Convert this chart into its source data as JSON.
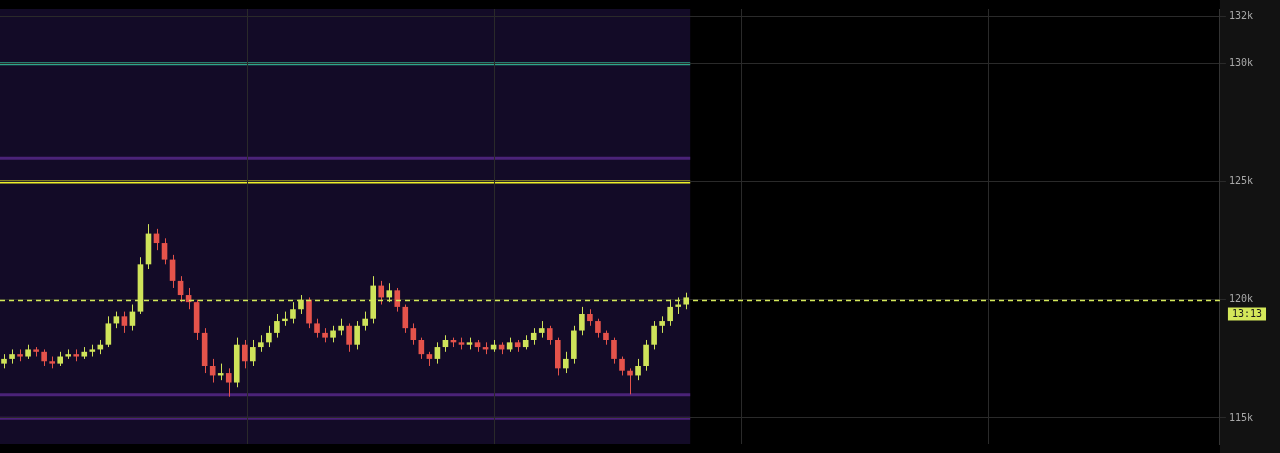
{
  "chart_data": {
    "type": "candlestick",
    "categories": [
      null,
      null,
      null,
      null,
      null,
      null,
      null,
      null,
      null,
      null,
      null,
      null,
      null,
      null,
      null,
      null,
      null,
      null,
      null,
      null,
      null,
      null,
      null,
      null,
      null,
      null,
      null,
      null,
      null,
      null,
      null,
      null,
      null,
      null,
      null,
      null,
      null,
      null,
      null,
      null,
      null,
      null,
      null,
      null,
      null,
      null,
      null,
      null,
      null,
      null,
      null,
      null,
      null,
      null,
      null,
      null,
      null,
      null,
      null,
      null,
      null,
      null,
      null,
      null,
      null,
      null,
      null,
      null,
      null,
      null,
      null,
      null,
      null,
      null,
      null,
      null,
      null,
      null,
      null,
      null,
      null,
      null,
      null,
      null,
      null,
      null,
      null,
      null,
      null,
      null,
      null,
      null,
      null,
      null,
      null,
      null,
      null,
      null,
      null,
      null,
      null,
      null,
      null,
      null,
      null,
      null,
      null,
      null,
      null,
      null,
      null,
      null,
      null,
      null,
      null,
      null,
      null,
      null,
      null,
      null,
      null,
      null,
      null,
      null,
      null,
      null,
      null,
      null,
      null,
      null,
      null,
      null,
      null,
      null,
      null,
      null,
      null,
      null,
      null,
      null,
      null,
      null,
      null,
      null,
      null,
      null,
      null,
      null,
      null,
      null,
      null,
      null
    ],
    "ohlc": [
      [
        117.3,
        117.7,
        117.1,
        117.5
      ],
      [
        117.5,
        117.9,
        117.3,
        117.7
      ],
      [
        117.7,
        117.9,
        117.4,
        117.6
      ],
      [
        117.6,
        118.1,
        117.5,
        117.9
      ],
      [
        117.9,
        118.0,
        117.6,
        117.8
      ],
      [
        117.8,
        117.9,
        117.2,
        117.4
      ],
      [
        117.4,
        117.6,
        117.1,
        117.3
      ],
      [
        117.3,
        117.8,
        117.2,
        117.6
      ],
      [
        117.6,
        117.9,
        117.5,
        117.7
      ],
      [
        117.7,
        117.9,
        117.4,
        117.6
      ],
      [
        117.6,
        118.0,
        117.5,
        117.8
      ],
      [
        117.8,
        118.1,
        117.6,
        117.9
      ],
      [
        117.9,
        118.3,
        117.7,
        118.1
      ],
      [
        118.1,
        119.3,
        118.0,
        119.0
      ],
      [
        119.0,
        119.5,
        118.8,
        119.3
      ],
      [
        119.3,
        119.5,
        118.6,
        118.9
      ],
      [
        118.9,
        119.8,
        118.7,
        119.5
      ],
      [
        119.5,
        121.8,
        119.4,
        121.5
      ],
      [
        121.5,
        123.2,
        121.3,
        122.8
      ],
      [
        122.8,
        123.0,
        122.1,
        122.4
      ],
      [
        122.4,
        122.6,
        121.5,
        121.7
      ],
      [
        121.7,
        121.9,
        120.5,
        120.8
      ],
      [
        120.8,
        121.0,
        119.9,
        120.2
      ],
      [
        120.2,
        120.5,
        119.6,
        119.9
      ],
      [
        119.9,
        120.0,
        118.3,
        118.6
      ],
      [
        118.6,
        118.8,
        116.9,
        117.2
      ],
      [
        117.2,
        117.5,
        116.5,
        116.8
      ],
      [
        116.8,
        117.3,
        116.6,
        116.9
      ],
      [
        116.9,
        117.1,
        115.9,
        116.5
      ],
      [
        116.5,
        118.4,
        116.3,
        118.1
      ],
      [
        118.1,
        118.3,
        117.1,
        117.4
      ],
      [
        117.4,
        118.3,
        117.2,
        118.0
      ],
      [
        118.0,
        118.5,
        117.8,
        118.2
      ],
      [
        118.2,
        118.9,
        118.0,
        118.6
      ],
      [
        118.6,
        119.4,
        118.4,
        119.1
      ],
      [
        119.1,
        119.5,
        118.9,
        119.2
      ],
      [
        119.2,
        119.9,
        119.0,
        119.6
      ],
      [
        119.6,
        120.2,
        119.4,
        120.0
      ],
      [
        120.0,
        120.1,
        118.8,
        119.0
      ],
      [
        119.0,
        119.2,
        118.4,
        118.6
      ],
      [
        118.6,
        118.8,
        118.2,
        118.4
      ],
      [
        118.4,
        118.9,
        118.2,
        118.7
      ],
      [
        118.7,
        119.2,
        118.5,
        118.9
      ],
      [
        118.9,
        119.0,
        117.8,
        118.1
      ],
      [
        118.1,
        119.1,
        117.9,
        118.9
      ],
      [
        118.9,
        119.5,
        118.7,
        119.2
      ],
      [
        119.2,
        121.0,
        119.0,
        120.6
      ],
      [
        120.6,
        120.8,
        119.8,
        120.1
      ],
      [
        120.1,
        120.7,
        119.9,
        120.4
      ],
      [
        120.4,
        120.5,
        119.5,
        119.7
      ],
      [
        119.7,
        119.8,
        118.6,
        118.8
      ],
      [
        118.8,
        119.0,
        118.1,
        118.3
      ],
      [
        118.3,
        118.4,
        117.5,
        117.7
      ],
      [
        117.7,
        117.8,
        117.2,
        117.5
      ],
      [
        117.5,
        118.2,
        117.3,
        118.0
      ],
      [
        118.0,
        118.5,
        117.8,
        118.3
      ],
      [
        118.3,
        118.4,
        118.0,
        118.2
      ],
      [
        118.2,
        118.4,
        117.9,
        118.1
      ],
      [
        118.1,
        118.4,
        117.9,
        118.2
      ],
      [
        118.2,
        118.3,
        117.8,
        118.0
      ],
      [
        118.0,
        118.2,
        117.7,
        117.9
      ],
      [
        117.9,
        118.3,
        117.8,
        118.1
      ],
      [
        118.1,
        118.2,
        117.7,
        117.9
      ],
      [
        117.9,
        118.4,
        117.8,
        118.2
      ],
      [
        118.2,
        118.3,
        117.8,
        118.0
      ],
      [
        118.0,
        118.5,
        117.9,
        118.3
      ],
      [
        118.3,
        118.8,
        118.1,
        118.6
      ],
      [
        118.6,
        119.1,
        118.4,
        118.8
      ],
      [
        118.8,
        118.9,
        118.1,
        118.3
      ],
      [
        118.3,
        118.4,
        116.8,
        117.1
      ],
      [
        117.1,
        117.8,
        116.9,
        117.5
      ],
      [
        117.5,
        118.9,
        117.3,
        118.7
      ],
      [
        118.7,
        119.7,
        118.5,
        119.4
      ],
      [
        119.4,
        119.6,
        118.9,
        119.1
      ],
      [
        119.1,
        119.2,
        118.4,
        118.6
      ],
      [
        118.6,
        118.7,
        118.1,
        118.3
      ],
      [
        118.3,
        118.4,
        117.3,
        117.5
      ],
      [
        117.5,
        117.6,
        116.8,
        117.0
      ],
      [
        117.0,
        117.1,
        116.0,
        116.8
      ],
      [
        116.8,
        117.5,
        116.6,
        117.2
      ],
      [
        117.2,
        118.3,
        117.0,
        118.1
      ],
      [
        118.1,
        119.1,
        117.9,
        118.9
      ],
      [
        118.9,
        119.3,
        118.6,
        119.1
      ],
      [
        119.1,
        120.0,
        118.9,
        119.7
      ],
      [
        119.7,
        120.1,
        119.4,
        119.8
      ],
      [
        119.8,
        120.3,
        119.6,
        120.1
      ],
      null,
      null,
      null,
      null,
      null,
      null,
      null,
      null,
      null,
      null,
      null,
      null,
      null,
      null,
      null,
      null,
      null,
      null,
      null,
      null,
      null,
      null,
      null,
      null,
      null,
      null,
      null,
      null,
      null,
      null,
      null,
      null,
      null,
      null,
      null,
      null,
      null,
      null,
      null,
      null,
      null,
      null,
      null,
      null,
      null,
      null,
      null,
      null,
      null,
      null,
      null,
      null,
      null,
      null,
      null,
      null,
      null,
      null,
      null,
      null,
      null,
      null,
      null,
      null,
      null,
      null
    ],
    "colors": [
      "#cfe35a",
      "#cfe35a",
      "#e5534b",
      "#cfe35a",
      "#e5534b",
      "#e5534b",
      "#e5534b",
      "#cfe35a",
      "#cfe35a",
      "#e5534b",
      "#cfe35a",
      "#cfe35a",
      "#cfe35a",
      "#cfe35a",
      "#cfe35a",
      "#e5534b",
      "#cfe35a",
      "#cfe35a",
      "#cfe35a",
      "#e5534b",
      "#e5534b",
      "#e5534b",
      "#e5534b",
      "#e5534b",
      "#e5534b",
      "#e5534b",
      "#e5534b",
      "#cfe35a",
      "#e5534b",
      "#cfe35a",
      "#e5534b",
      "#cfe35a",
      "#cfe35a",
      "#cfe35a",
      "#cfe35a",
      "#cfe35a",
      "#cfe35a",
      "#cfe35a",
      "#e5534b",
      "#e5534b",
      "#e5534b",
      "#cfe35a",
      "#cfe35a",
      "#e5534b",
      "#cfe35a",
      "#cfe35a",
      "#cfe35a",
      "#e5534b",
      "#cfe35a",
      "#e5534b",
      "#e5534b",
      "#e5534b",
      "#e5534b",
      "#e5534b",
      "#cfe35a",
      "#cfe35a",
      "#e5534b",
      "#e5534b",
      "#cfe35a",
      "#e5534b",
      "#e5534b",
      "#cfe35a",
      "#e5534b",
      "#cfe35a",
      "#e5534b",
      "#cfe35a",
      "#cfe35a",
      "#cfe35a",
      "#e5534b",
      "#e5534b",
      "#cfe35a",
      "#cfe35a",
      "#cfe35a",
      "#e5534b",
      "#e5534b",
      "#e5534b",
      "#e5534b",
      "#e5534b",
      "#e5534b",
      "#cfe35a",
      "#cfe35a",
      "#cfe35a",
      "#cfe35a",
      "#cfe35a",
      "#cfe35a",
      "#cfe35a",
      null,
      null,
      null,
      null,
      null,
      null,
      null,
      null,
      null,
      null,
      null,
      null,
      null,
      null,
      null,
      null,
      null,
      null,
      null,
      null,
      null,
      null,
      null,
      null,
      null,
      null,
      null,
      null,
      null,
      null,
      null,
      null,
      null,
      null,
      null,
      null,
      null,
      null,
      null,
      null,
      null,
      null,
      null,
      null,
      null,
      null,
      null,
      null,
      null,
      null,
      null,
      null,
      null,
      null,
      null,
      null,
      null,
      null,
      null,
      null,
      null,
      null,
      null,
      null,
      null,
      null
    ],
    "annotations": [
      "13:13"
    ],
    "ylim": [
      113.9,
      132.3
    ],
    "yticks": [
      {
        "value": 115,
        "label": "115k"
      },
      {
        "value": 120,
        "label": "120k"
      },
      {
        "value": 125,
        "label": "125k"
      },
      {
        "value": 130,
        "label": "130k"
      },
      {
        "value": 132,
        "label": "132k"
      }
    ],
    "grid": true,
    "ref_lines": [
      {
        "axis": "y",
        "value": 120.0,
        "color": "#d4e85a",
        "line_style": "dashed"
      }
    ],
    "bands": [
      {
        "axis": "y",
        "from": 129.95,
        "to": 130.05,
        "color": "#2fa58a"
      },
      {
        "axis": "y",
        "from": 124.95,
        "to": 125.05,
        "color": "#eef02a"
      },
      {
        "axis": "y",
        "from": 125.95,
        "to": 126.05,
        "color": "#4b2378"
      },
      {
        "axis": "y",
        "from": 115.95,
        "to": 116.05,
        "color": "#4b2378"
      },
      {
        "axis": "y",
        "from": 114.95,
        "to": 115.05,
        "color": "#4b2378"
      }
    ]
  }
}
